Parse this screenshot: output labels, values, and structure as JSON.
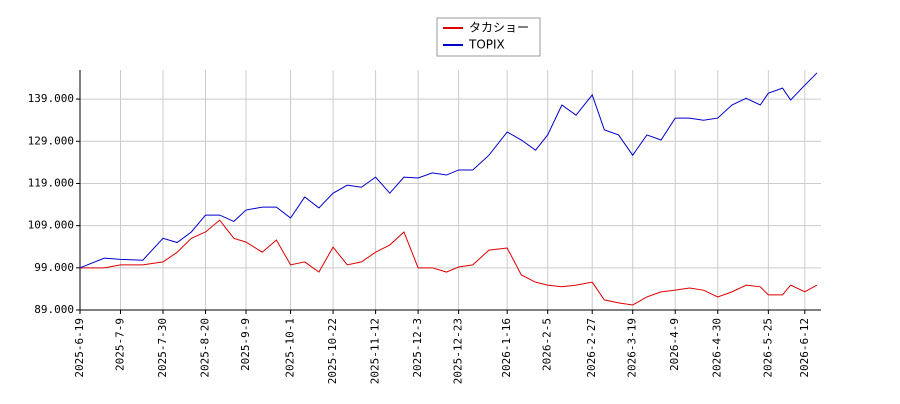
{
  "chart_data": {
    "type": "line",
    "x": [
      "2025-6-19",
      "2025-7-1",
      "2025-7-9",
      "2025-7-20",
      "2025-7-30",
      "2025-8-6",
      "2025-8-13",
      "2025-8-20",
      "2025-8-27",
      "2025-9-3",
      "2025-9-9",
      "2025-9-17",
      "2025-9-24",
      "2025-10-1",
      "2025-10-8",
      "2025-10-15",
      "2025-10-22",
      "2025-10-29",
      "2025-11-5",
      "2025-11-12",
      "2025-11-19",
      "2025-11-26",
      "2025-12-3",
      "2025-12-10",
      "2025-12-17",
      "2025-12-23",
      "2025-12-30",
      "2026-1-7",
      "2026-1-16",
      "2026-1-23",
      "2026-1-30",
      "2026-2-5",
      "2026-2-12",
      "2026-2-19",
      "2026-2-27",
      "2026-3-5",
      "2026-3-12",
      "2026-3-19",
      "2026-3-26",
      "2026-4-2",
      "2026-4-9",
      "2026-4-16",
      "2026-4-23",
      "2026-4-30",
      "2026-5-7",
      "2026-5-14",
      "2026-5-21",
      "2026-5-25",
      "2026-6-1",
      "2026-6-5",
      "2026-6-12",
      "2026-6-18"
    ],
    "series": [
      {
        "name": "タカショー",
        "color": "#dd0000",
        "values": [
          99,
          99,
          99.7,
          99.7,
          100.4,
          102.7,
          106,
          107.5,
          110.3,
          106,
          105.1,
          102.7,
          105.6,
          99.7,
          100.4,
          98,
          103.9,
          99.7,
          100.4,
          102.7,
          104.4,
          107.5,
          99,
          99,
          98,
          99.2,
          99.7,
          103.2,
          103.7,
          97.3,
          95.6,
          94.9,
          94.5,
          94.9,
          95.6,
          91.4,
          90.7,
          90.2,
          92.1,
          93.3,
          93.7,
          94.2,
          93.7,
          92.1,
          93.3,
          94.9,
          94.5,
          92.6,
          92.6,
          94.9,
          93.3,
          94.9
        ]
      },
      {
        "name": "TOPIX",
        "color": "#0000cc",
        "values": [
          99,
          101.3,
          101,
          100.8,
          106,
          105,
          107.5,
          111.5,
          111.5,
          110,
          112.7,
          113.4,
          113.4,
          110.8,
          115.8,
          113.2,
          116.7,
          118.6,
          118.1,
          120.5,
          116.7,
          120.5,
          120.3,
          121.5,
          121,
          122.2,
          122.2,
          125.7,
          131.2,
          129.3,
          126.9,
          130.5,
          137.6,
          135.2,
          140,
          131.7,
          130.5,
          125.7,
          130.5,
          129.3,
          134.5,
          134.5,
          134,
          134.5,
          137.6,
          139.2,
          137.6,
          140.4,
          141.6,
          138.8,
          142.3,
          145.2
        ]
      }
    ],
    "xlim": [
      "2025-6-19",
      "2026-6-20"
    ],
    "xticks": [
      "2025-6-19",
      "2025-7-9",
      "2025-7-30",
      "2025-8-20",
      "2025-9-9",
      "2025-10-1",
      "2025-10-22",
      "2025-11-12",
      "2025-12-3",
      "2025-12-23",
      "2026-1-16",
      "2026-2-5",
      "2026-2-27",
      "2026-3-19",
      "2026-4-9",
      "2026-4-30",
      "2026-5-25",
      "2026-6-12"
    ],
    "ylim": [
      89,
      145.9
    ],
    "yticks": [
      {
        "value": 89,
        "label": "89.000"
      },
      {
        "value": 99,
        "label": "99.000"
      },
      {
        "value": 109,
        "label": "109.000"
      },
      {
        "value": 119,
        "label": "119.000"
      },
      {
        "value": 129,
        "label": "129.000"
      },
      {
        "value": 139,
        "label": "139.000"
      }
    ],
    "grid": true,
    "legend": "top"
  }
}
